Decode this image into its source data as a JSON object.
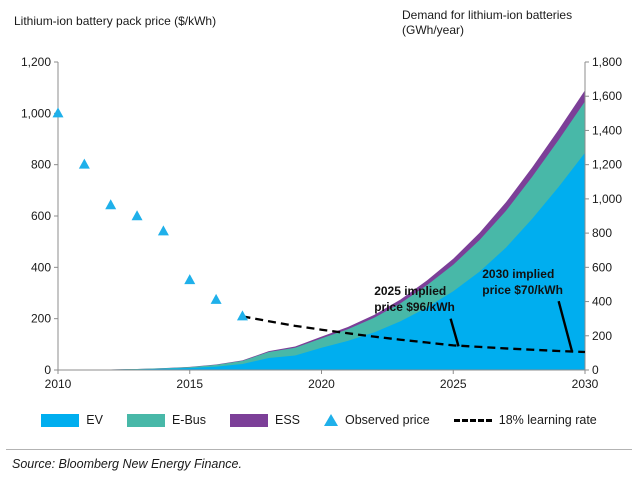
{
  "titles": {
    "left": "Lithium-ion battery pack price ($/kWh)",
    "right": "Demand for lithium-ion batteries (GWh/year)"
  },
  "source": "Source: Bloomberg New Energy Finance.",
  "colors": {
    "ev": "#00aeef",
    "ebus": "#48b8a8",
    "ess": "#7c3f98",
    "observed": "#1fb0ea",
    "learning_rate": "#000000",
    "axis": "#8c8c8c",
    "text": "#1a1a1a"
  },
  "legend": {
    "items": [
      {
        "label": "EV",
        "swatch": "ev"
      },
      {
        "label": "E-Bus",
        "swatch": "ebus"
      },
      {
        "label": "ESS",
        "swatch": "ess"
      },
      {
        "label": "Observed price",
        "swatch": "observed-triangle"
      },
      {
        "label": "18% learning rate",
        "swatch": "dashed-line"
      }
    ]
  },
  "chart_data": {
    "type": "area",
    "title": "",
    "x_axis": {
      "range": [
        2010,
        2030
      ],
      "ticks": [
        2010,
        2015,
        2020,
        2025,
        2030
      ]
    },
    "left_axis": {
      "label": "Lithium-ion battery pack price ($/kWh)",
      "range": [
        0,
        1200
      ],
      "tick_step": 200
    },
    "right_axis": {
      "label": "Demand for lithium-ion batteries (GWh/year)",
      "range": [
        0,
        1800
      ],
      "tick_step": 200
    },
    "years": [
      2010,
      2011,
      2012,
      2013,
      2014,
      2015,
      2016,
      2017,
      2018,
      2019,
      2020,
      2021,
      2022,
      2023,
      2024,
      2025,
      2026,
      2027,
      2028,
      2029,
      2030
    ],
    "demand_series": [
      {
        "name": "EV",
        "color": "ev",
        "values": [
          0,
          1,
          2,
          4,
          7,
          12,
          20,
          35,
          70,
          85,
          130,
          170,
          220,
          285,
          365,
          460,
          575,
          715,
          885,
          1070,
          1270
        ]
      },
      {
        "name": "E-Bus",
        "color": "ebus",
        "values": [
          0,
          0,
          1,
          2,
          3,
          5,
          10,
          18,
          35,
          45,
          55,
          68,
          85,
          105,
          130,
          155,
          185,
          215,
          245,
          275,
          300
        ]
      },
      {
        "name": "ESS",
        "color": "ess",
        "values": [
          0,
          0,
          0,
          0,
          1,
          1,
          2,
          3,
          5,
          7,
          10,
          13,
          17,
          22,
          28,
          35,
          42,
          50,
          55,
          60,
          65
        ]
      }
    ],
    "observed_price": {
      "name": "Observed price",
      "years": [
        2010,
        2011,
        2012,
        2013,
        2014,
        2015,
        2016,
        2017
      ],
      "values": [
        1000,
        800,
        642,
        599,
        540,
        350,
        273,
        209
      ]
    },
    "learning_rate_line": {
      "name": "18% learning rate",
      "years": [
        2017,
        2018,
        2019,
        2020,
        2021,
        2022,
        2023,
        2024,
        2025,
        2026,
        2027,
        2028,
        2029,
        2030
      ],
      "values": [
        209,
        190,
        172,
        157,
        143,
        130,
        118,
        107,
        96,
        90,
        84,
        79,
        74,
        70
      ]
    },
    "annotations": [
      {
        "text": "2025 implied price $96/kWh",
        "lines": [
          "2025 implied",
          "price $96/kWh"
        ],
        "label_year": 2022.0,
        "label_price": 292,
        "pointer": {
          "from": [
            2024.9,
            200
          ],
          "to": [
            2025.2,
            92
          ]
        }
      },
      {
        "text": "2030 implied price $70/kWh",
        "lines": [
          "2030 implied",
          "price $70/kWh"
        ],
        "label_year": 2026.1,
        "label_price": 358,
        "pointer": {
          "from": [
            2029.0,
            268
          ],
          "to": [
            2029.5,
            75
          ]
        }
      }
    ]
  }
}
